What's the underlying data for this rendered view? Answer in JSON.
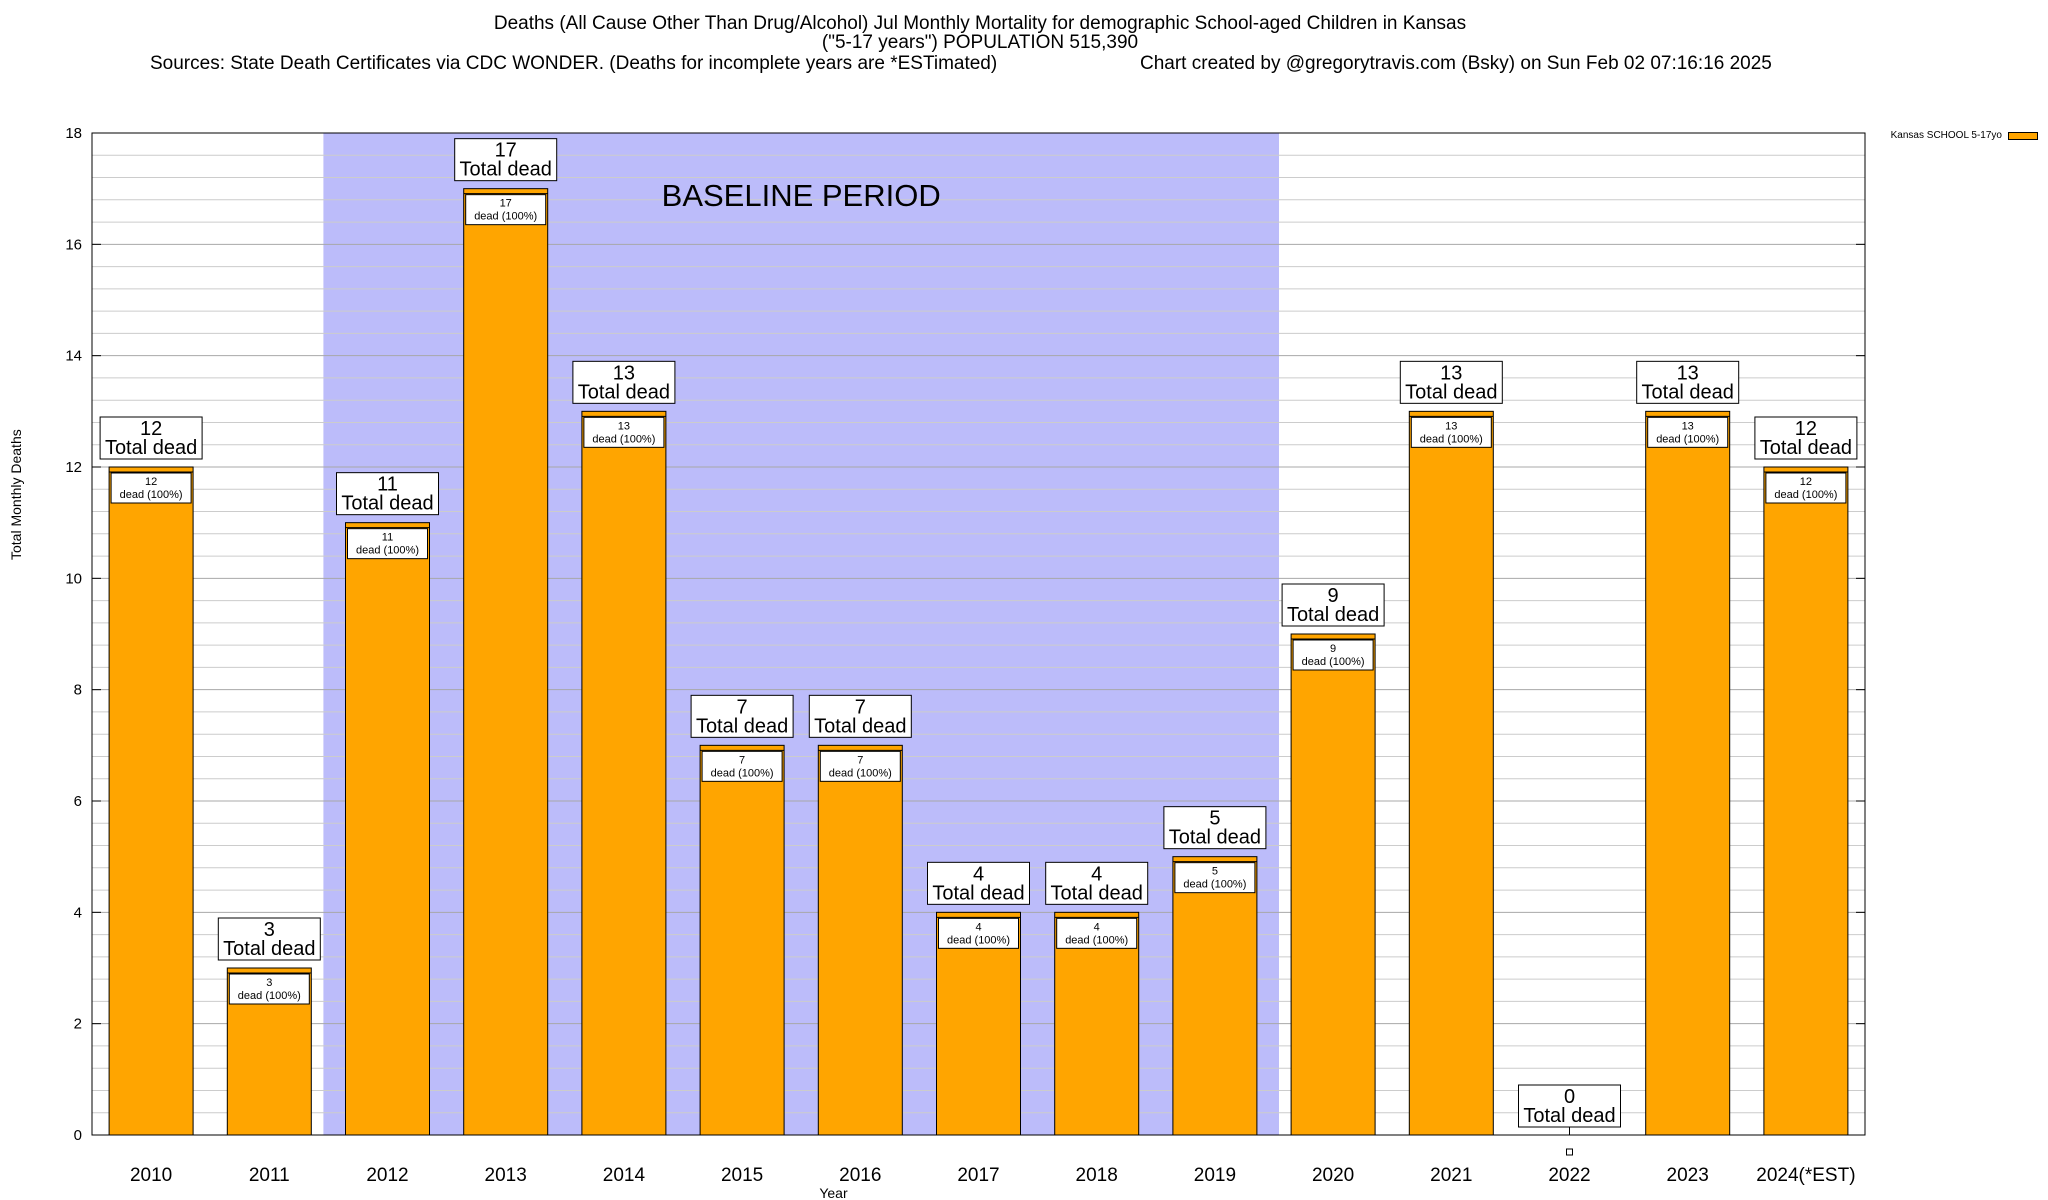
{
  "header": {
    "title_line1": "Deaths (All Cause Other Than Drug/Alcohol) Jul Monthly Mortality for demographic School-aged Children in Kansas",
    "title_line2": "(\"5-17 years\") POPULATION 515,390",
    "sources": "Sources: State Death Certificates via CDC WONDER. (Deaths for incomplete years are *ESTimated)",
    "credit": "Chart created by @gregorytravis.com (Bsky) on Sun Feb 02 07:16:16 2025"
  },
  "legend": {
    "label": "Kansas SCHOOL 5-17yo"
  },
  "chart_data": {
    "type": "bar",
    "title": "Deaths (All Cause Other Than Drug/Alcohol) Jul Monthly Mortality for demographic School-aged Children in Kansas",
    "xlabel": "Year",
    "ylabel": "Total Monthly Deaths",
    "ylim": [
      0,
      18
    ],
    "yticks": [
      0,
      2,
      4,
      6,
      8,
      10,
      12,
      14,
      16,
      18
    ],
    "grid": true,
    "legend_position": "top-right",
    "categories": [
      "2010",
      "2011",
      "2012",
      "2013",
      "2014",
      "2015",
      "2016",
      "2017",
      "2018",
      "2019",
      "2020",
      "2021",
      "2022",
      "2023",
      "2024(*EST)"
    ],
    "series": [
      {
        "name": "Kansas SCHOOL 5-17yo",
        "color": "#ffa500",
        "values": [
          12,
          3,
          11,
          17,
          13,
          7,
          7,
          4,
          4,
          5,
          9,
          13,
          0,
          13,
          12
        ]
      }
    ],
    "total_label": "Total dead",
    "inner_label": "dead (100%)",
    "baseline": {
      "label": "BASELINE PERIOD",
      "from": "2012",
      "to": "2019",
      "color": "#bcbcfa"
    }
  }
}
